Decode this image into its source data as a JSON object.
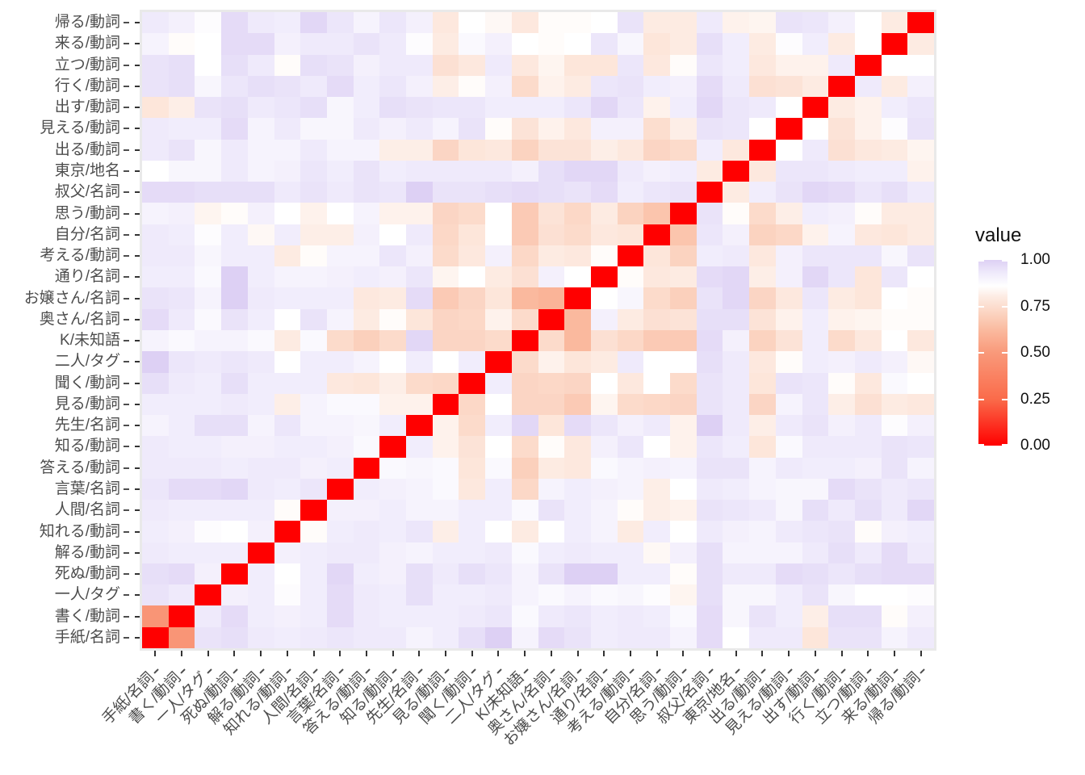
{
  "figure": {
    "type": "heatmap-plot",
    "background": "#ffffff"
  },
  "legend": {
    "title": "value",
    "tick_labels": [
      "1.00",
      "0.75",
      "0.50",
      "0.25",
      "0.00"
    ],
    "tick_values": [
      1.0,
      0.75,
      0.5,
      0.25,
      0.0
    ]
  },
  "colors": {
    "panel_background": "#E9E9E9",
    "axis_text": "#4D4D4D",
    "tick_mark": "#333333",
    "diagonal": "#FF0000",
    "scale_stops": [
      [
        0.0,
        "#FF0000"
      ],
      [
        0.25,
        "#FA6B4A"
      ],
      [
        0.5,
        "#F9997A"
      ],
      [
        0.62,
        "#FAB99E"
      ],
      [
        0.7,
        "#FBD0BC"
      ],
      [
        0.8,
        "#FDEBE2"
      ],
      [
        0.86,
        "#FFFFFF"
      ],
      [
        0.93,
        "#EFEAFB"
      ],
      [
        1.0,
        "#DDD0F4"
      ]
    ]
  },
  "chart_data": {
    "type": "heatmap",
    "legend_title": "value",
    "colorbar_range": [
      0.0,
      1.0
    ],
    "colorbar_ticks": [
      0.0,
      0.25,
      0.5,
      0.75,
      1.0
    ],
    "x_categories_left_to_right": [
      "手紙/名詞",
      "書く/動詞",
      "一人/タグ",
      "死ぬ/動詞",
      "解る/動詞",
      "知れる/動詞",
      "人間/名詞",
      "言葉/名詞",
      "答える/動詞",
      "知る/動詞",
      "先生/名詞",
      "見る/動詞",
      "聞く/動詞",
      "二人/タグ",
      "K/未知語",
      "奥さん/名詞",
      "お嬢さん/名詞",
      "通り/名詞",
      "考える/動詞",
      "自分/名詞",
      "思う/動詞",
      "叔父/名詞",
      "東京/地名",
      "出る/動詞",
      "見える/動詞",
      "出す/動詞",
      "行く/動詞",
      "立つ/動詞",
      "来る/動詞",
      "帰る/動詞"
    ],
    "y_categories_top_to_bottom": [
      "帰る/動詞",
      "来る/動詞",
      "立つ/動詞",
      "行く/動詞",
      "出す/動詞",
      "見える/動詞",
      "出る/動詞",
      "東京/地名",
      "叔父/名詞",
      "思う/動詞",
      "自分/名詞",
      "考える/動詞",
      "通り/名詞",
      "お嬢さん/名詞",
      "奥さん/名詞",
      "K/未知語",
      "二人/タグ",
      "聞く/動詞",
      "見る/動詞",
      "先生/名詞",
      "知る/動詞",
      "答える/動詞",
      "言葉/名詞",
      "人間/名詞",
      "知れる/動詞",
      "解る/動詞",
      "死ぬ/動詞",
      "一人/タグ",
      "書く/動詞",
      "手紙/名詞"
    ],
    "values_rows_top_to_bottom": [
      [
        0.93,
        0.91,
        0.87,
        0.97,
        0.93,
        0.92,
        0.98,
        0.94,
        0.9,
        0.94,
        0.91,
        0.79,
        0.86,
        0.84,
        0.79,
        0.85,
        0.85,
        0.86,
        0.95,
        0.8,
        0.8,
        0.93,
        0.82,
        0.83,
        0.95,
        0.94,
        0.91,
        0.86,
        0.8,
        0.0
      ],
      [
        0.9,
        0.85,
        0.86,
        0.97,
        0.97,
        0.91,
        0.93,
        0.93,
        0.95,
        0.93,
        0.87,
        0.8,
        0.88,
        0.91,
        0.86,
        0.85,
        0.86,
        0.94,
        0.89,
        0.78,
        0.8,
        0.96,
        0.92,
        0.8,
        0.87,
        0.92,
        0.8,
        0.86,
        0.0,
        0.8
      ],
      [
        0.95,
        0.96,
        0.86,
        0.96,
        0.93,
        0.85,
        0.96,
        0.95,
        0.91,
        0.93,
        0.93,
        0.76,
        0.79,
        0.93,
        0.79,
        0.83,
        0.78,
        0.78,
        0.94,
        0.79,
        0.85,
        0.94,
        0.92,
        0.79,
        0.82,
        0.82,
        0.93,
        0.0,
        0.86,
        0.86
      ],
      [
        0.95,
        0.96,
        0.89,
        0.94,
        0.96,
        0.95,
        0.93,
        0.97,
        0.92,
        0.94,
        0.91,
        0.81,
        0.85,
        0.91,
        0.74,
        0.82,
        0.8,
        0.94,
        0.95,
        0.92,
        0.91,
        0.97,
        0.93,
        0.76,
        0.77,
        0.8,
        0.0,
        0.93,
        0.8,
        0.91
      ],
      [
        0.78,
        0.81,
        0.95,
        0.96,
        0.93,
        0.94,
        0.96,
        0.89,
        0.92,
        0.96,
        0.95,
        0.94,
        0.94,
        0.92,
        0.92,
        0.92,
        0.94,
        0.98,
        0.94,
        0.82,
        0.92,
        0.98,
        0.94,
        0.93,
        0.86,
        0.0,
        0.8,
        0.82,
        0.92,
        0.94
      ],
      [
        0.93,
        0.92,
        0.92,
        0.97,
        0.9,
        0.93,
        0.89,
        0.89,
        0.93,
        0.91,
        0.93,
        0.9,
        0.95,
        0.85,
        0.77,
        0.82,
        0.79,
        0.91,
        0.91,
        0.75,
        0.81,
        0.95,
        0.94,
        0.86,
        0.0,
        0.86,
        0.77,
        0.82,
        0.87,
        0.95
      ],
      [
        0.93,
        0.95,
        0.89,
        0.93,
        0.9,
        0.9,
        0.93,
        0.9,
        0.9,
        0.81,
        0.81,
        0.72,
        0.78,
        0.79,
        0.71,
        0.77,
        0.77,
        0.81,
        0.79,
        0.72,
        0.74,
        0.92,
        0.79,
        0.0,
        0.86,
        0.93,
        0.76,
        0.79,
        0.8,
        0.83
      ],
      [
        0.86,
        0.89,
        0.89,
        0.93,
        0.9,
        0.91,
        0.94,
        0.92,
        0.95,
        0.92,
        0.93,
        0.93,
        0.93,
        0.93,
        0.91,
        0.96,
        0.98,
        0.98,
        0.93,
        0.91,
        0.92,
        0.8,
        0.0,
        0.79,
        0.94,
        0.94,
        0.93,
        0.92,
        0.92,
        0.82
      ],
      [
        0.97,
        0.97,
        0.96,
        0.96,
        0.96,
        0.93,
        0.95,
        0.93,
        0.95,
        0.94,
        1.0,
        0.95,
        0.95,
        0.96,
        0.97,
        0.96,
        0.95,
        0.97,
        0.92,
        0.94,
        0.95,
        0.0,
        0.8,
        0.92,
        0.95,
        0.98,
        0.97,
        0.94,
        0.96,
        0.93
      ],
      [
        0.9,
        0.91,
        0.83,
        0.85,
        0.91,
        0.86,
        0.82,
        0.86,
        0.9,
        0.82,
        0.82,
        0.72,
        0.74,
        0.86,
        0.68,
        0.77,
        0.73,
        0.8,
        0.71,
        0.66,
        0.0,
        0.95,
        0.85,
        0.74,
        0.81,
        0.92,
        0.91,
        0.85,
        0.8,
        0.8
      ],
      [
        0.93,
        0.92,
        0.87,
        0.92,
        0.84,
        0.92,
        0.81,
        0.81,
        0.91,
        0.86,
        0.93,
        0.73,
        0.78,
        0.86,
        0.68,
        0.76,
        0.74,
        0.79,
        0.78,
        0.0,
        0.66,
        0.94,
        0.91,
        0.71,
        0.73,
        0.82,
        0.9,
        0.79,
        0.78,
        0.8
      ],
      [
        0.93,
        0.93,
        0.89,
        0.92,
        0.92,
        0.8,
        0.85,
        0.9,
        0.9,
        0.94,
        0.91,
        0.74,
        0.79,
        0.91,
        0.73,
        0.8,
        0.79,
        0.85,
        0.0,
        0.78,
        0.71,
        0.92,
        0.93,
        0.79,
        0.91,
        0.94,
        0.94,
        0.94,
        0.89,
        0.95
      ],
      [
        0.92,
        0.92,
        0.88,
        1.0,
        0.92,
        0.9,
        0.9,
        0.91,
        0.92,
        0.91,
        0.94,
        0.83,
        0.86,
        0.8,
        0.76,
        0.91,
        0.86,
        0.0,
        0.85,
        0.79,
        0.8,
        0.97,
        0.98,
        0.81,
        0.91,
        0.98,
        0.94,
        0.78,
        0.94,
        0.86
      ],
      [
        0.95,
        0.94,
        0.9,
        1.0,
        0.93,
        0.92,
        0.92,
        0.92,
        0.79,
        0.8,
        0.97,
        0.68,
        0.72,
        0.78,
        0.62,
        0.6,
        0.0,
        0.86,
        0.89,
        0.74,
        0.7,
        0.95,
        0.98,
        0.72,
        0.79,
        0.94,
        0.8,
        0.78,
        0.86,
        0.85
      ],
      [
        0.97,
        0.93,
        0.88,
        0.95,
        0.92,
        0.86,
        0.95,
        0.9,
        0.8,
        0.85,
        0.78,
        0.72,
        0.73,
        0.82,
        0.74,
        0.0,
        0.62,
        0.91,
        0.8,
        0.76,
        0.77,
        0.96,
        0.96,
        0.77,
        0.82,
        0.92,
        0.82,
        0.83,
        0.85,
        0.85
      ],
      [
        0.9,
        0.88,
        0.9,
        0.9,
        0.88,
        0.8,
        0.88,
        0.74,
        0.7,
        0.74,
        0.98,
        0.72,
        0.72,
        0.74,
        0.0,
        0.74,
        0.62,
        0.76,
        0.73,
        0.68,
        0.68,
        0.97,
        0.91,
        0.71,
        0.77,
        0.92,
        0.74,
        0.79,
        0.86,
        0.79
      ],
      [
        1.0,
        0.94,
        0.93,
        0.94,
        0.93,
        0.86,
        0.92,
        0.92,
        0.9,
        0.86,
        0.92,
        0.86,
        0.92,
        0.0,
        0.74,
        0.82,
        0.78,
        0.8,
        0.93,
        0.86,
        0.86,
        0.96,
        0.93,
        0.79,
        0.85,
        0.92,
        0.91,
        0.93,
        0.91,
        0.84
      ],
      [
        0.96,
        0.93,
        0.92,
        0.96,
        0.92,
        0.92,
        0.92,
        0.79,
        0.78,
        0.81,
        0.74,
        0.73,
        0.0,
        0.92,
        0.72,
        0.73,
        0.72,
        0.86,
        0.79,
        0.86,
        0.74,
        0.95,
        0.93,
        0.78,
        0.95,
        0.94,
        0.85,
        0.79,
        0.88,
        0.86
      ],
      [
        0.92,
        0.92,
        0.92,
        0.93,
        0.92,
        0.81,
        0.9,
        0.88,
        0.88,
        0.82,
        0.82,
        0.0,
        0.73,
        0.86,
        0.72,
        0.72,
        0.68,
        0.83,
        0.74,
        0.73,
        0.72,
        0.95,
        0.93,
        0.72,
        0.9,
        0.94,
        0.81,
        0.76,
        0.8,
        0.79
      ],
      [
        0.9,
        0.92,
        0.96,
        0.96,
        0.9,
        0.94,
        0.9,
        0.9,
        0.89,
        0.92,
        0.0,
        0.82,
        0.74,
        0.92,
        0.98,
        0.78,
        0.97,
        0.94,
        0.91,
        0.93,
        0.82,
        1.0,
        0.93,
        0.81,
        0.93,
        0.95,
        0.91,
        0.93,
        0.87,
        0.91
      ],
      [
        0.93,
        0.92,
        0.92,
        0.91,
        0.91,
        0.92,
        0.92,
        0.91,
        0.88,
        0.0,
        0.92,
        0.82,
        0.77,
        0.86,
        0.74,
        0.85,
        0.79,
        0.91,
        0.94,
        0.86,
        0.82,
        0.94,
        0.92,
        0.78,
        0.88,
        0.93,
        0.93,
        0.93,
        0.95,
        0.94
      ],
      [
        0.93,
        0.93,
        0.93,
        0.92,
        0.93,
        0.93,
        0.91,
        0.92,
        0.0,
        0.88,
        0.89,
        0.88,
        0.78,
        0.88,
        0.7,
        0.8,
        0.79,
        0.88,
        0.9,
        0.91,
        0.9,
        0.95,
        0.95,
        0.9,
        0.93,
        0.92,
        0.92,
        0.91,
        0.95,
        0.9
      ],
      [
        0.94,
        0.97,
        0.97,
        0.98,
        0.93,
        0.92,
        0.94,
        0.0,
        0.92,
        0.91,
        0.9,
        0.88,
        0.79,
        0.92,
        0.73,
        0.9,
        0.92,
        0.91,
        0.9,
        0.81,
        0.86,
        0.93,
        0.92,
        0.9,
        0.89,
        0.89,
        0.97,
        0.95,
        0.93,
        0.94
      ],
      [
        0.93,
        0.92,
        0.92,
        0.92,
        0.92,
        0.85,
        0.0,
        0.91,
        0.91,
        0.92,
        0.9,
        0.9,
        0.92,
        0.92,
        0.88,
        0.95,
        0.92,
        0.9,
        0.85,
        0.81,
        0.82,
        0.95,
        0.94,
        0.93,
        0.89,
        0.96,
        0.93,
        0.96,
        0.93,
        0.98
      ],
      [
        0.92,
        0.91,
        0.87,
        0.86,
        0.91,
        0.0,
        0.85,
        0.92,
        0.93,
        0.92,
        0.94,
        0.81,
        0.92,
        0.86,
        0.8,
        0.86,
        0.92,
        0.9,
        0.8,
        0.92,
        0.86,
        0.93,
        0.91,
        0.9,
        0.93,
        0.94,
        0.95,
        0.85,
        0.91,
        0.92
      ],
      [
        0.93,
        0.92,
        0.92,
        0.92,
        0.0,
        0.91,
        0.92,
        0.93,
        0.93,
        0.91,
        0.9,
        0.92,
        0.92,
        0.93,
        0.88,
        0.92,
        0.93,
        0.92,
        0.92,
        0.84,
        0.91,
        0.96,
        0.9,
        0.9,
        0.9,
        0.93,
        0.96,
        0.93,
        0.97,
        0.93
      ],
      [
        0.96,
        0.97,
        0.91,
        0.0,
        0.92,
        0.86,
        0.92,
        0.98,
        0.92,
        0.91,
        0.96,
        0.93,
        0.96,
        0.94,
        0.9,
        0.95,
        1.0,
        1.0,
        0.92,
        0.92,
        0.85,
        0.96,
        0.93,
        0.93,
        0.97,
        0.96,
        0.94,
        0.96,
        0.97,
        0.97
      ],
      [
        0.95,
        0.93,
        0.0,
        0.91,
        0.92,
        0.87,
        0.92,
        0.97,
        0.93,
        0.92,
        0.96,
        0.92,
        0.92,
        0.93,
        0.9,
        0.88,
        0.9,
        0.88,
        0.89,
        0.87,
        0.83,
        0.96,
        0.89,
        0.89,
        0.92,
        0.95,
        0.89,
        0.86,
        0.86,
        0.87
      ],
      [
        0.48,
        0.0,
        0.93,
        0.97,
        0.92,
        0.91,
        0.92,
        0.97,
        0.93,
        0.92,
        0.92,
        0.92,
        0.93,
        0.94,
        0.88,
        0.93,
        0.94,
        0.92,
        0.93,
        0.92,
        0.88,
        0.97,
        0.89,
        0.95,
        0.92,
        0.81,
        0.96,
        0.96,
        0.85,
        0.91
      ],
      [
        0.0,
        0.48,
        0.95,
        0.96,
        0.93,
        0.92,
        0.93,
        0.94,
        0.93,
        0.93,
        0.9,
        0.92,
        0.96,
        1.0,
        0.9,
        0.97,
        0.95,
        0.92,
        0.93,
        0.93,
        0.9,
        0.97,
        0.86,
        0.93,
        0.93,
        0.78,
        0.95,
        0.95,
        0.9,
        0.93
      ]
    ]
  }
}
